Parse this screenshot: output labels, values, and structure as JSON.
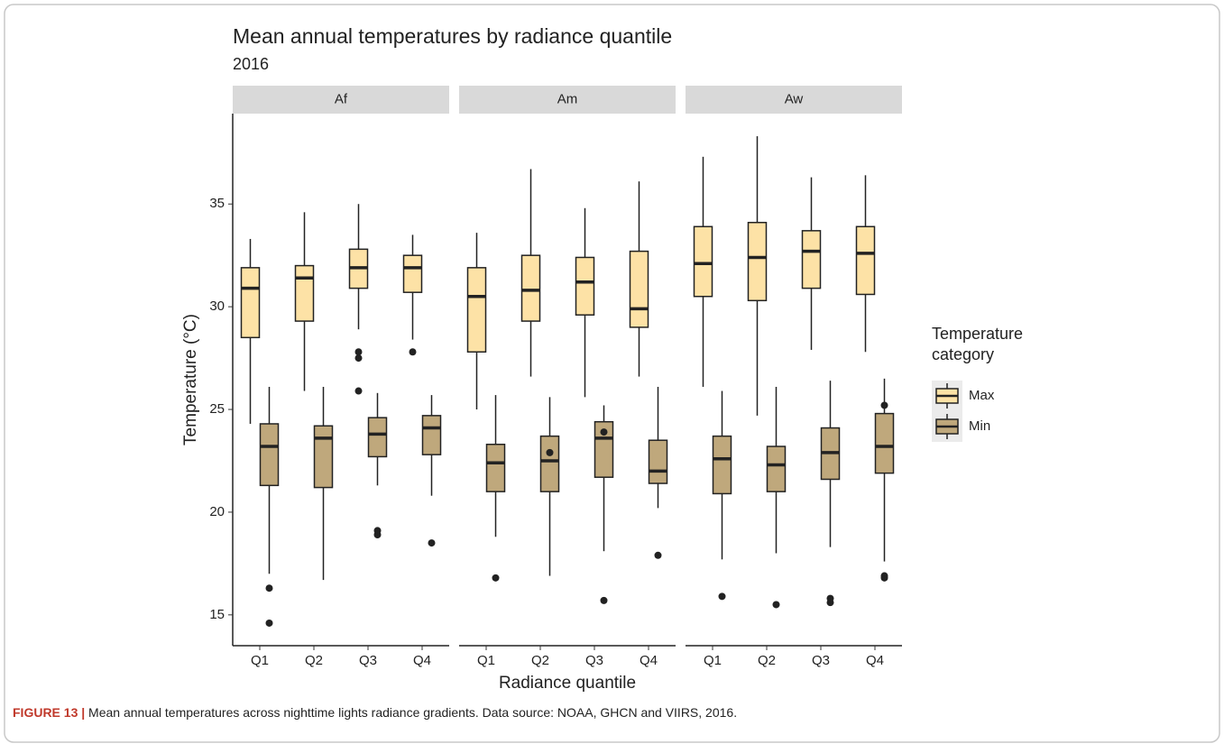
{
  "chart_data": {
    "type": "boxplot",
    "title": "Mean annual temperatures by radiance quantile",
    "subtitle": "2016",
    "x_label": "Radiance quantile",
    "y_label": "Temperature (°C)",
    "legend_title": [
      "Temperature",
      "category"
    ],
    "facets": [
      "Af",
      "Am",
      "Aw"
    ],
    "categories": [
      "Q1",
      "Q2",
      "Q3",
      "Q4"
    ],
    "ylim": [
      13.5,
      39.4
    ],
    "yticks": [
      15,
      20,
      25,
      30,
      35
    ],
    "series": [
      {
        "name": "Max",
        "color": "#fde2a6",
        "boxes": [
          [
            {
              "low": 24.3,
              "q1": 28.5,
              "median": 30.9,
              "q3": 31.9,
              "high": 33.3,
              "outliers": []
            },
            {
              "low": 25.9,
              "q1": 29.3,
              "median": 31.4,
              "q3": 32.0,
              "high": 34.6,
              "outliers": []
            },
            {
              "low": 28.9,
              "q1": 30.9,
              "median": 31.9,
              "q3": 32.8,
              "high": 35.0,
              "outliers": [
                27.8,
                27.5,
                25.9
              ]
            },
            {
              "low": 28.4,
              "q1": 30.7,
              "median": 31.9,
              "q3": 32.5,
              "high": 33.5,
              "outliers": [
                27.8
              ]
            }
          ],
          [
            {
              "low": 25.0,
              "q1": 27.8,
              "median": 30.5,
              "q3": 31.9,
              "high": 33.6,
              "outliers": []
            },
            {
              "low": 26.6,
              "q1": 29.3,
              "median": 30.8,
              "q3": 32.5,
              "high": 36.7,
              "outliers": []
            },
            {
              "low": 25.6,
              "q1": 29.6,
              "median": 31.2,
              "q3": 32.4,
              "high": 34.8,
              "outliers": []
            },
            {
              "low": 26.6,
              "q1": 29.0,
              "median": 29.9,
              "q3": 32.7,
              "high": 36.1,
              "outliers": []
            }
          ],
          [
            {
              "low": 26.1,
              "q1": 30.5,
              "median": 32.1,
              "q3": 33.9,
              "high": 37.3,
              "outliers": []
            },
            {
              "low": 24.7,
              "q1": 30.3,
              "median": 32.4,
              "q3": 34.1,
              "high": 38.3,
              "outliers": []
            },
            {
              "low": 27.9,
              "q1": 30.9,
              "median": 32.7,
              "q3": 33.7,
              "high": 36.3,
              "outliers": []
            },
            {
              "low": 27.8,
              "q1": 30.6,
              "median": 32.6,
              "q3": 33.9,
              "high": 36.4,
              "outliers": []
            }
          ]
        ]
      },
      {
        "name": "Min",
        "color": "#bfa87c",
        "boxes": [
          [
            {
              "low": 17.0,
              "q1": 21.3,
              "median": 23.2,
              "q3": 24.3,
              "high": 26.1,
              "outliers": [
                16.3,
                14.6
              ]
            },
            {
              "low": 16.7,
              "q1": 21.2,
              "median": 23.6,
              "q3": 24.2,
              "high": 26.1,
              "outliers": []
            },
            {
              "low": 21.3,
              "q1": 22.7,
              "median": 23.8,
              "q3": 24.6,
              "high": 25.8,
              "outliers": [
                19.1,
                18.9
              ]
            },
            {
              "low": 20.8,
              "q1": 22.8,
              "median": 24.1,
              "q3": 24.7,
              "high": 25.7,
              "outliers": [
                18.5
              ]
            }
          ],
          [
            {
              "low": 18.8,
              "q1": 21.0,
              "median": 22.4,
              "q3": 23.3,
              "high": 25.7,
              "outliers": [
                16.8
              ]
            },
            {
              "low": 16.9,
              "q1": 21.0,
              "median": 22.5,
              "q3": 23.7,
              "high": 25.6,
              "outliers": [
                22.9
              ]
            },
            {
              "low": 18.1,
              "q1": 21.7,
              "median": 23.6,
              "q3": 24.4,
              "high": 25.2,
              "outliers": [
                23.9,
                15.7
              ]
            },
            {
              "low": 20.2,
              "q1": 21.4,
              "median": 22.0,
              "q3": 23.5,
              "high": 26.1,
              "outliers": [
                17.9
              ]
            }
          ],
          [
            {
              "low": 17.7,
              "q1": 20.9,
              "median": 22.6,
              "q3": 23.7,
              "high": 25.9,
              "outliers": [
                15.9
              ]
            },
            {
              "low": 18.0,
              "q1": 21.0,
              "median": 22.3,
              "q3": 23.2,
              "high": 26.1,
              "outliers": [
                15.5
              ]
            },
            {
              "low": 18.3,
              "q1": 21.6,
              "median": 22.9,
              "q3": 24.1,
              "high": 26.4,
              "outliers": [
                15.8,
                15.6
              ]
            },
            {
              "low": 17.6,
              "q1": 21.9,
              "median": 23.2,
              "q3": 24.8,
              "high": 26.5,
              "outliers": [
                25.2,
                16.9,
                16.8
              ]
            }
          ]
        ]
      }
    ]
  },
  "caption_label": "FIGURE 13 |",
  "caption": " Mean annual temperatures across nighttime lights radiance gradients. Data source: NOAA, GHCN and VIIRS, 2016."
}
